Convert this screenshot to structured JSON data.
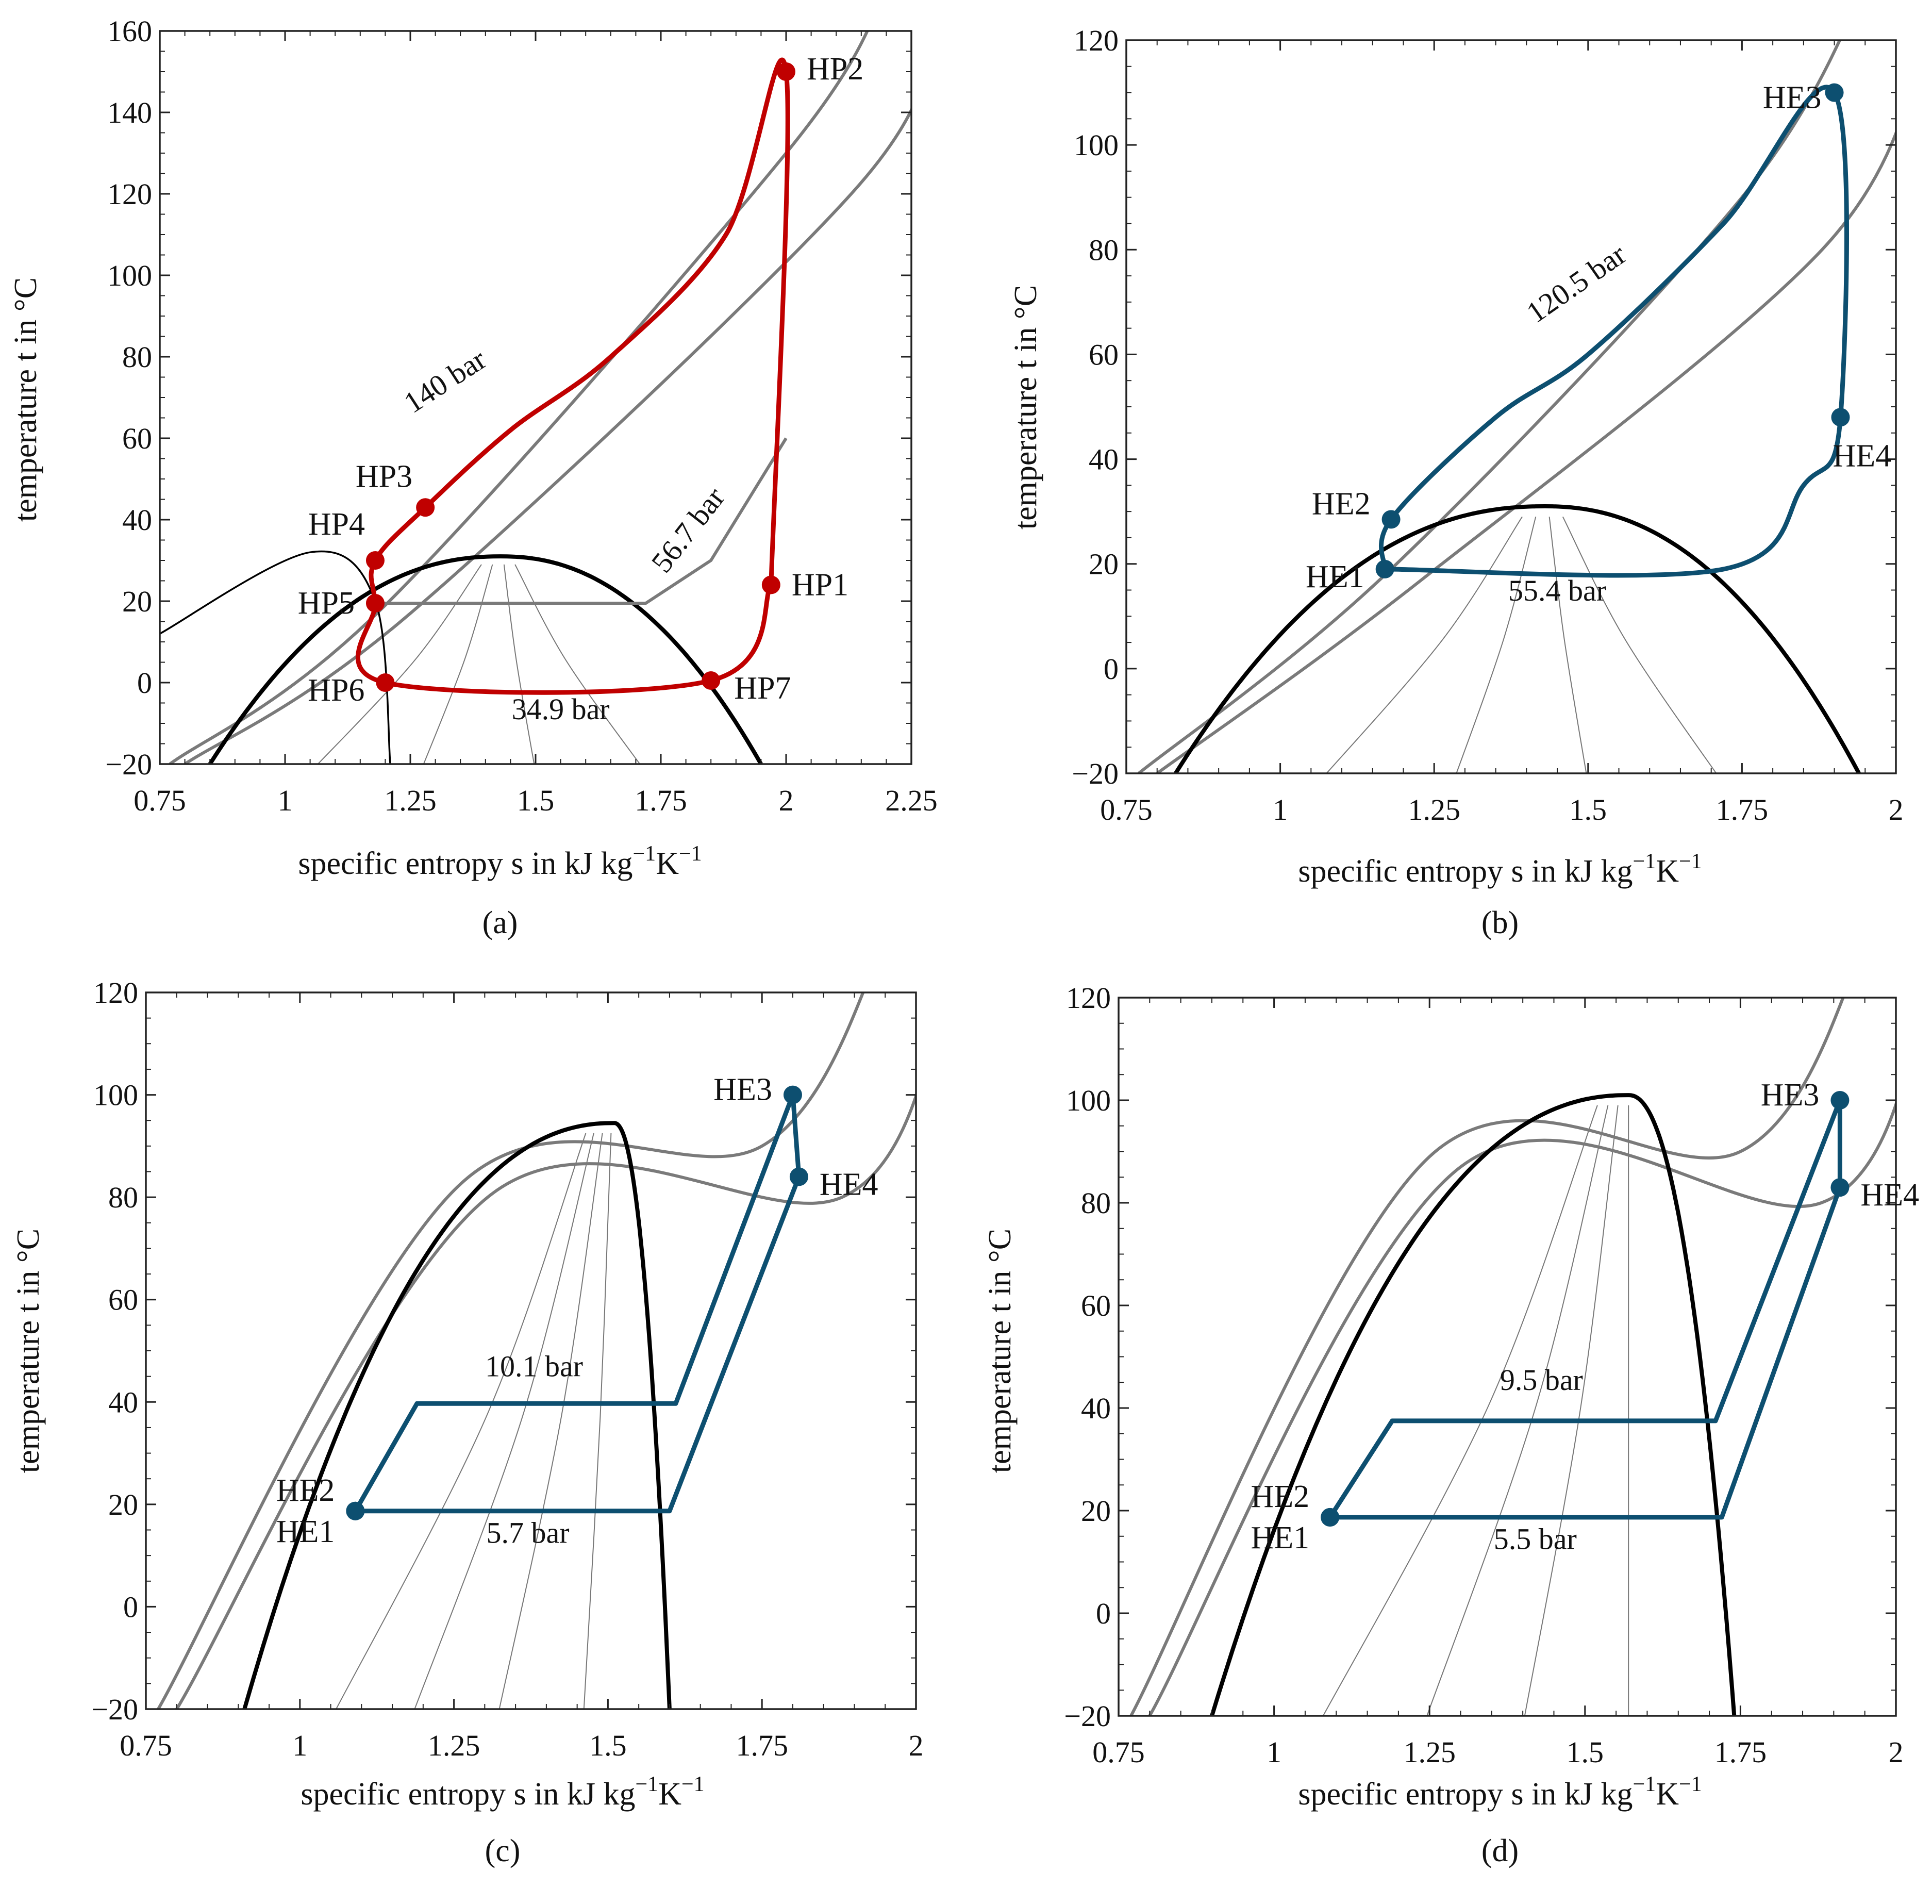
{
  "colors": {
    "heat_pump": "#c00000",
    "heat_engine": "#0d4f70",
    "dome": "#000000",
    "isobar": "#7a7a7a",
    "quality_lines": "#777777"
  },
  "chart_data": [
    {
      "panel": "(a)",
      "type": "line",
      "xlabel_main": "specific entropy s in kJ kg",
      "xlabel_sup1": "−1",
      "xlabel_mid": "K",
      "xlabel_sup2": "−1",
      "ylabel": "temperature t in °C",
      "xlim": [
        0.75,
        2.25
      ],
      "ylim": [
        -20,
        160
      ],
      "xticks": [
        0.75,
        1,
        1.25,
        1.5,
        1.75,
        2,
        2.25
      ],
      "xtick_labels": [
        "0.75",
        "1",
        "1.25",
        "1.5",
        "1.75",
        "2",
        "2.25"
      ],
      "yticks": [
        -20,
        0,
        20,
        40,
        60,
        80,
        100,
        120,
        140,
        160
      ],
      "ytick_labels": [
        "−20",
        "0",
        "20",
        "40",
        "60",
        "80",
        "100",
        "120",
        "140",
        "160"
      ],
      "cycle_color": "#c00000",
      "dome_top": [
        1.43,
        31
      ],
      "dome_left_bottom": [
        0.85,
        -20
      ],
      "dome_right_bottom": [
        1.95,
        -20
      ],
      "quality_s_at_bottom": [
        1.05,
        1.27,
        1.5,
        1.72
      ],
      "points": [
        {
          "label": "HP1",
          "s": 1.97,
          "t": 24
        },
        {
          "label": "HP2",
          "s": 2.0,
          "t": 150
        },
        {
          "label": "HP3",
          "s": 1.28,
          "t": 43
        },
        {
          "label": "HP4",
          "s": 1.18,
          "t": 30
        },
        {
          "label": "HP5",
          "s": 1.18,
          "t": 19.5
        },
        {
          "label": "HP6",
          "s": 1.2,
          "t": 0
        },
        {
          "label": "HP7",
          "s": 1.85,
          "t": 0.5
        }
      ],
      "pressure_labels": [
        {
          "text": "140 bar",
          "s": 1.33,
          "t": 72,
          "angle": -33
        },
        {
          "text": "56.7 bar",
          "s": 1.82,
          "t": 36,
          "angle": -52
        },
        {
          "text": "34.9 bar",
          "s": 1.55,
          "t": -9,
          "angle": 0
        }
      ]
    },
    {
      "panel": "(b)",
      "type": "line",
      "xlabel_main": "specific entropy s in kJ kg",
      "xlabel_sup1": "−1",
      "xlabel_mid": "K",
      "xlabel_sup2": "−1",
      "ylabel": "temperature t in °C",
      "xlim": [
        0.75,
        2
      ],
      "ylim": [
        -20,
        120
      ],
      "xticks": [
        0.75,
        1,
        1.25,
        1.5,
        1.75,
        2
      ],
      "xtick_labels": [
        "0.75",
        "1",
        "1.25",
        "1.5",
        "1.75",
        "2"
      ],
      "yticks": [
        -20,
        0,
        20,
        40,
        60,
        80,
        100,
        120
      ],
      "ytick_labels": [
        "−20",
        "0",
        "20",
        "40",
        "60",
        "80",
        "100",
        "120"
      ],
      "cycle_color": "#0d4f70",
      "dome_top": [
        1.43,
        31
      ],
      "dome_left_bottom": [
        0.83,
        -20
      ],
      "dome_right_bottom": [
        1.94,
        -20
      ],
      "quality_s_at_bottom": [
        1.06,
        1.28,
        1.5,
        1.72
      ],
      "points": [
        {
          "label": "HE1",
          "s": 1.17,
          "t": 19
        },
        {
          "label": "HE2",
          "s": 1.18,
          "t": 28.5
        },
        {
          "label": "HE3",
          "s": 1.9,
          "t": 110
        },
        {
          "label": "HE4",
          "s": 1.91,
          "t": 48
        }
      ],
      "pressure_labels": [
        {
          "text": "120.5 bar",
          "s": 1.49,
          "t": 72,
          "angle": -35
        },
        {
          "text": "55.4 bar",
          "s": 1.45,
          "t": 13,
          "angle": 0
        }
      ]
    },
    {
      "panel": "(c)",
      "type": "line",
      "xlabel_main": "specific entropy s in kJ kg",
      "xlabel_sup1": "−1",
      "xlabel_mid": "K",
      "xlabel_sup2": "−1",
      "ylabel": "temperature t in °C",
      "xlim": [
        0.75,
        2
      ],
      "ylim": [
        -20,
        120
      ],
      "xticks": [
        0.75,
        1,
        1.25,
        1.5,
        1.75,
        2
      ],
      "xtick_labels": [
        "0.75",
        "1",
        "1.25",
        "1.5",
        "1.75",
        "2"
      ],
      "yticks": [
        -20,
        0,
        20,
        40,
        60,
        80,
        100,
        120
      ],
      "ytick_labels": [
        "−20",
        "0",
        "20",
        "40",
        "60",
        "80",
        "100",
        "120"
      ],
      "cycle_color": "#0d4f70",
      "dome_top": [
        1.51,
        94.5
      ],
      "dome_left_bottom": [
        0.91,
        -20
      ],
      "dome_right_bottom": [
        1.6,
        -20
      ],
      "quality_s_at_bottom": [
        1.05,
        1.18,
        1.32,
        1.46
      ],
      "points": [
        {
          "label": "HE1",
          "s": 1.09,
          "t": 18.7
        },
        {
          "label": "HE2",
          "s": 1.09,
          "t": 18.7
        },
        {
          "label": "HE3",
          "s": 1.8,
          "t": 100
        },
        {
          "label": "HE4",
          "s": 1.81,
          "t": 84
        }
      ],
      "pressure_labels": [
        {
          "text": "10.1 bar",
          "s": 1.38,
          "t": 45,
          "angle": 0
        },
        {
          "text": "5.7 bar",
          "s": 1.37,
          "t": 12.5,
          "angle": 0
        }
      ]
    },
    {
      "panel": "(d)",
      "type": "line",
      "xlabel_main": "specific entropy s in kJ kg",
      "xlabel_sup1": "−1",
      "xlabel_mid": "K",
      "xlabel_sup2": "−1",
      "ylabel": "temperature t in °C",
      "xlim": [
        0.75,
        2
      ],
      "ylim": [
        -20,
        120
      ],
      "xticks": [
        0.75,
        1,
        1.25,
        1.5,
        1.75,
        2
      ],
      "xtick_labels": [
        "0.75",
        "1",
        "1.25",
        "1.5",
        "1.75",
        "2"
      ],
      "yticks": [
        -20,
        0,
        20,
        40,
        60,
        80,
        100,
        120
      ],
      "ytick_labels": [
        "−20",
        "0",
        "20",
        "40",
        "60",
        "80",
        "100",
        "120"
      ],
      "cycle_color": "#0d4f70",
      "dome_top": [
        1.57,
        101
      ],
      "dome_left_bottom": [
        0.9,
        -20
      ],
      "dome_right_bottom": [
        1.74,
        -20
      ],
      "quality_s_at_bottom": [
        1.07,
        1.24,
        1.4,
        1.57
      ],
      "points": [
        {
          "label": "HE1",
          "s": 1.09,
          "t": 18.7
        },
        {
          "label": "HE2",
          "s": 1.09,
          "t": 18.7
        },
        {
          "label": "HE3",
          "s": 1.91,
          "t": 100
        },
        {
          "label": "HE4",
          "s": 1.91,
          "t": 83
        }
      ],
      "pressure_labels": [
        {
          "text": "9.5 bar",
          "s": 1.43,
          "t": 43.5,
          "angle": 0
        },
        {
          "text": "5.5 bar",
          "s": 1.42,
          "t": 12.5,
          "angle": 0
        }
      ]
    }
  ]
}
